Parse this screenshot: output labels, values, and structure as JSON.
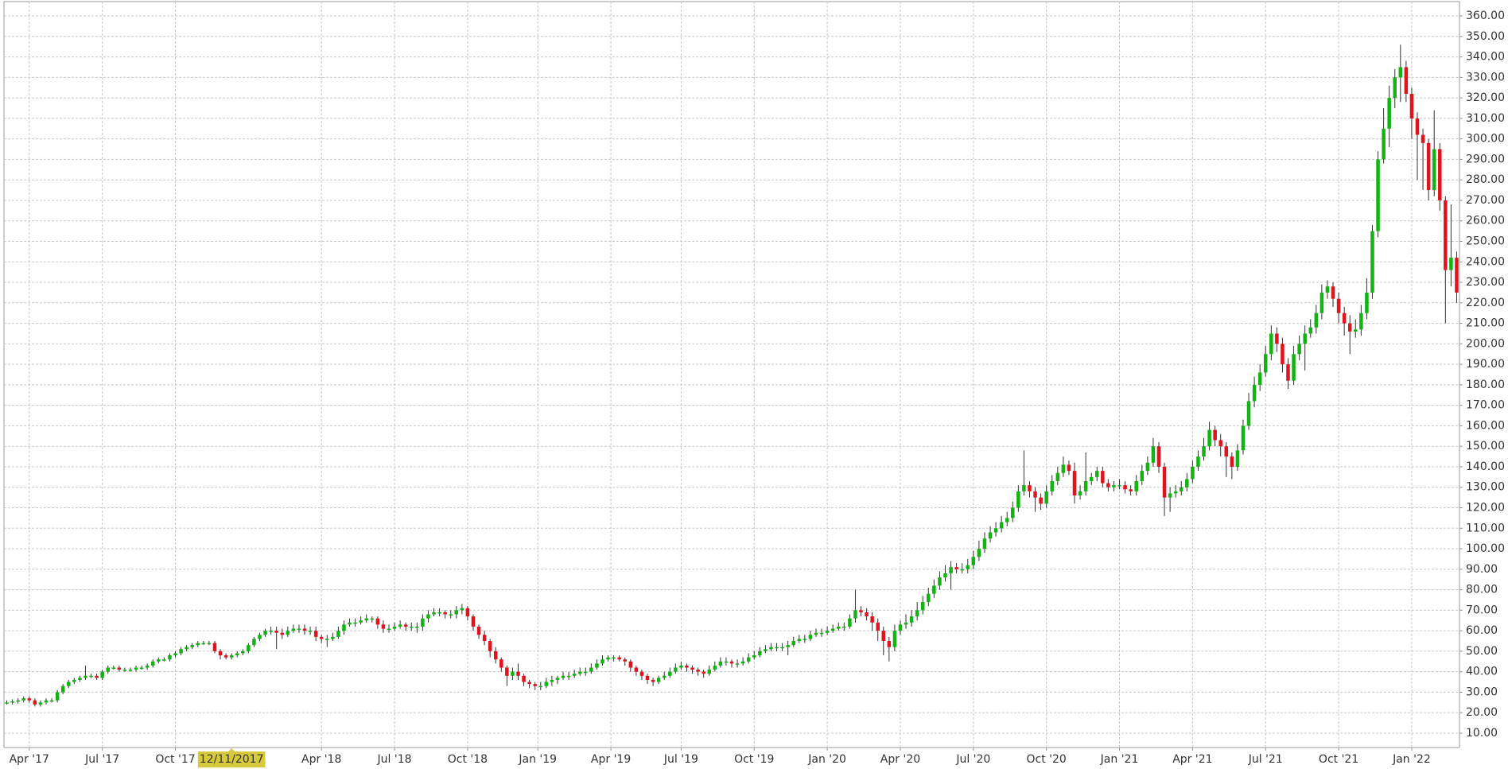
{
  "chart_data": {
    "type": "candlestick",
    "up_color": "#12b312",
    "down_color": "#e0141e",
    "grid": true,
    "crosshair_label": "12/11/2017",
    "xlim": [
      -0.5,
      258.5
    ],
    "xticks": [
      {
        "value": 4,
        "label": "Apr '17"
      },
      {
        "value": 17,
        "label": "Jul '17"
      },
      {
        "value": 30,
        "label": "Oct '17"
      },
      {
        "value": 56,
        "label": "Apr '18"
      },
      {
        "value": 69,
        "label": "Jul '18"
      },
      {
        "value": 82,
        "label": "Oct '18"
      },
      {
        "value": 94.5,
        "label": "Jan '19"
      },
      {
        "value": 107.5,
        "label": "Apr '19"
      },
      {
        "value": 120,
        "label": "Jul '19"
      },
      {
        "value": 133,
        "label": "Oct '19"
      },
      {
        "value": 146,
        "label": "Jan '20"
      },
      {
        "value": 159,
        "label": "Apr '20"
      },
      {
        "value": 172,
        "label": "Jul '20"
      },
      {
        "value": 185,
        "label": "Oct '20"
      },
      {
        "value": 198,
        "label": "Jan '21"
      },
      {
        "value": 211,
        "label": "Apr '21"
      },
      {
        "value": 224,
        "label": "Jul '21"
      },
      {
        "value": 237,
        "label": "Oct '21"
      },
      {
        "value": 250,
        "label": "Jan '22"
      }
    ],
    "ylim": [
      3,
      367
    ],
    "yticks": [
      {
        "value": 10,
        "label": "10.00"
      },
      {
        "value": 20,
        "label": "20.00"
      },
      {
        "value": 30,
        "label": "30.00"
      },
      {
        "value": 40,
        "label": "40.00"
      },
      {
        "value": 50,
        "label": "50.00"
      },
      {
        "value": 60,
        "label": "60.00"
      },
      {
        "value": 70,
        "label": "70.00"
      },
      {
        "value": 80,
        "label": "80.00"
      },
      {
        "value": 90,
        "label": "90.00"
      },
      {
        "value": 100,
        "label": "100.00"
      },
      {
        "value": 110,
        "label": "110.00"
      },
      {
        "value": 120,
        "label": "120.00"
      },
      {
        "value": 130,
        "label": "130.00"
      },
      {
        "value": 140,
        "label": "140.00"
      },
      {
        "value": 150,
        "label": "150.00"
      },
      {
        "value": 160,
        "label": "160.00"
      },
      {
        "value": 170,
        "label": "170.00"
      },
      {
        "value": 180,
        "label": "180.00"
      },
      {
        "value": 190,
        "label": "190.00"
      },
      {
        "value": 200,
        "label": "200.00"
      },
      {
        "value": 210,
        "label": "210.00"
      },
      {
        "value": 220,
        "label": "220.00"
      },
      {
        "value": 230,
        "label": "230.00"
      },
      {
        "value": 240,
        "label": "240.00"
      },
      {
        "value": 250,
        "label": "250.00"
      },
      {
        "value": 260,
        "label": "260.00"
      },
      {
        "value": 270,
        "label": "270.00"
      },
      {
        "value": 280,
        "label": "280.00"
      },
      {
        "value": 290,
        "label": "290.00"
      },
      {
        "value": 300,
        "label": "300.00"
      },
      {
        "value": 310,
        "label": "310.00"
      },
      {
        "value": 320,
        "label": "320.00"
      },
      {
        "value": 330,
        "label": "330.00"
      },
      {
        "value": 340,
        "label": "340.00"
      },
      {
        "value": 350,
        "label": "350.00"
      },
      {
        "value": 360,
        "label": "360.00"
      }
    ],
    "open": [
      24.5,
      25,
      25.5,
      26,
      27,
      26,
      24,
      25,
      26,
      26,
      30,
      33,
      35,
      36,
      37,
      38,
      38,
      37,
      40,
      42,
      42,
      41,
      41,
      41,
      42,
      42,
      43,
      45,
      46,
      46,
      48,
      49,
      51,
      52,
      53,
      54,
      54,
      54,
      50,
      48,
      47,
      48,
      49,
      50,
      53,
      56,
      58,
      60,
      60,
      59,
      58,
      60,
      61,
      61,
      60,
      60,
      57,
      56,
      56,
      57,
      60,
      63,
      64,
      64,
      65,
      66,
      66,
      63,
      61,
      61,
      62,
      63,
      62,
      62,
      62,
      66,
      68,
      69,
      69,
      68,
      68,
      70,
      71,
      67,
      62,
      58,
      55,
      50,
      46,
      42,
      38,
      40,
      38,
      35,
      34,
      33,
      33,
      35,
      36,
      37,
      38,
      38,
      39,
      40,
      40,
      42,
      44,
      46,
      47,
      47,
      46,
      45,
      42,
      40,
      38,
      36,
      35,
      37,
      38,
      40,
      42,
      43,
      42,
      41,
      40,
      39,
      41,
      43,
      45,
      45,
      44,
      44,
      45,
      47,
      48,
      50,
      51,
      52,
      52,
      52,
      53,
      55,
      56,
      56,
      58,
      59,
      59,
      60,
      61,
      62,
      62,
      66,
      70,
      69,
      67,
      64,
      60,
      55,
      52,
      60,
      63,
      64,
      67,
      70,
      74,
      78,
      82,
      86,
      88,
      91,
      90,
      90,
      92,
      96,
      100,
      105,
      108,
      110,
      113,
      115,
      120,
      128,
      131,
      128,
      125,
      122,
      128,
      133,
      137,
      141,
      138,
      126,
      128,
      133,
      135,
      138,
      132,
      130,
      131,
      131,
      129,
      128,
      133,
      138,
      142,
      150,
      140,
      125,
      127,
      128,
      130,
      134,
      140,
      145,
      150,
      158,
      153,
      150,
      145,
      140,
      148,
      160,
      172,
      180,
      186,
      195,
      205,
      200,
      190,
      182,
      195,
      200,
      205,
      208,
      215,
      225,
      228,
      222,
      215,
      210,
      206,
      207,
      215,
      225,
      255,
      290,
      305,
      320,
      330,
      335,
      322,
      310,
      302,
      298,
      275,
      295,
      270,
      236,
      242
    ],
    "high": [
      26,
      26.5,
      27,
      28,
      28,
      27,
      26,
      27,
      27,
      31,
      34,
      36,
      37,
      38,
      43,
      39,
      39,
      41,
      43,
      43,
      43,
      42,
      42,
      43,
      43,
      44,
      46,
      47,
      47,
      49,
      50,
      52,
      53,
      54,
      55,
      55,
      55,
      55,
      51,
      49,
      49,
      50,
      51,
      54,
      57,
      59,
      61,
      62,
      62,
      61,
      62,
      63,
      63,
      63,
      62,
      62,
      58,
      58,
      59,
      62,
      65,
      66,
      66,
      67,
      68,
      67,
      67,
      65,
      63,
      64,
      65,
      64,
      64,
      64,
      68,
      70,
      71,
      71,
      70,
      70,
      72,
      73,
      72,
      68,
      63,
      60,
      56,
      52,
      47,
      43,
      42,
      44,
      39,
      36,
      35,
      35,
      37,
      38,
      38,
      40,
      40,
      41,
      42,
      42,
      44,
      46,
      48,
      48,
      48,
      48,
      47,
      46,
      43,
      41,
      39,
      37,
      38,
      40,
      42,
      44,
      45,
      44,
      43,
      42,
      41,
      43,
      45,
      47,
      47,
      46,
      46,
      47,
      49,
      50,
      52,
      53,
      54,
      54,
      54,
      55,
      57,
      58,
      58,
      60,
      61,
      61,
      62,
      63,
      64,
      64,
      68,
      80,
      72,
      71,
      69,
      66,
      62,
      57,
      63,
      65,
      68,
      70,
      74,
      77,
      81,
      85,
      89,
      92,
      94,
      93,
      93,
      95,
      99,
      104,
      108,
      111,
      113,
      116,
      118,
      123,
      131,
      148,
      133,
      130,
      127,
      131,
      136,
      140,
      145,
      143,
      142,
      131,
      147,
      137,
      140,
      140,
      134,
      133,
      134,
      133,
      131,
      136,
      141,
      145,
      154,
      152,
      142,
      130,
      131,
      133,
      137,
      143,
      148,
      154,
      162,
      160,
      156,
      152,
      147,
      151,
      163,
      176,
      184,
      190,
      199,
      209,
      208,
      203,
      193,
      199,
      204,
      209,
      212,
      219,
      229,
      231,
      230,
      225,
      218,
      214,
      212,
      219,
      232,
      258,
      294,
      315,
      326,
      334,
      346,
      338,
      325,
      313,
      305,
      300,
      314,
      298,
      272,
      268,
      245
    ],
    "low": [
      24,
      24,
      24.5,
      25,
      25,
      23,
      23,
      24,
      25,
      25,
      29,
      32,
      34,
      35,
      36,
      37,
      36,
      36,
      39,
      41,
      40,
      40,
      40,
      40,
      41,
      41,
      42,
      44,
      45,
      45,
      47,
      48,
      50,
      51,
      52,
      53,
      53,
      49,
      46,
      46,
      46,
      47,
      48,
      49,
      52,
      55,
      57,
      58,
      51,
      56,
      57,
      59,
      59,
      58,
      58,
      55,
      54,
      52,
      55,
      56,
      58,
      62,
      62,
      63,
      64,
      64,
      61,
      59,
      59,
      60,
      61,
      60,
      60,
      59,
      60,
      64,
      67,
      67,
      66,
      66,
      66,
      68,
      65,
      60,
      56,
      53,
      47,
      44,
      40,
      33,
      36,
      36,
      33,
      32,
      31,
      31,
      32,
      33,
      34,
      36,
      36,
      37,
      38,
      38,
      39,
      41,
      43,
      45,
      45,
      45,
      43,
      40,
      38,
      36,
      34,
      33,
      34,
      36,
      37,
      39,
      41,
      40,
      39,
      38,
      37,
      38,
      40,
      42,
      43,
      42,
      42,
      43,
      44,
      46,
      47,
      49,
      50,
      50,
      50,
      48,
      52,
      54,
      54,
      55,
      57,
      57,
      58,
      59,
      60,
      60,
      61,
      64,
      67,
      65,
      60,
      55,
      48,
      45,
      50,
      58,
      61,
      62,
      65,
      68,
      72,
      76,
      80,
      84,
      80,
      88,
      88,
      88,
      90,
      94,
      98,
      103,
      106,
      108,
      111,
      113,
      118,
      126,
      125,
      118,
      119,
      120,
      126,
      131,
      135,
      136,
      122,
      124,
      126,
      131,
      133,
      130,
      128,
      128,
      129,
      127,
      126,
      126,
      131,
      136,
      140,
      137,
      116,
      118,
      125,
      126,
      128,
      132,
      138,
      143,
      148,
      150,
      145,
      135,
      134,
      138,
      146,
      158,
      169,
      177,
      184,
      192,
      196,
      186,
      178,
      180,
      192,
      187,
      203,
      205,
      212,
      222,
      218,
      210,
      204,
      195,
      203,
      204,
      212,
      222,
      252,
      288,
      296,
      315,
      318,
      318,
      300,
      280,
      275,
      270,
      272,
      265,
      210,
      228,
      220
    ],
    "close": [
      25,
      25.5,
      26,
      27,
      26,
      24,
      25,
      26,
      26,
      30,
      33,
      35,
      36,
      37,
      38,
      38,
      37,
      40,
      42,
      42,
      41,
      41,
      41,
      42,
      42,
      43,
      45,
      46,
      46,
      48,
      49,
      51,
      52,
      53,
      54,
      54,
      54,
      50,
      48,
      47,
      48,
      49,
      50,
      53,
      56,
      58,
      60,
      60,
      59,
      58,
      60,
      61,
      61,
      60,
      60,
      57,
      56,
      56,
      57,
      60,
      63,
      64,
      64,
      65,
      66,
      66,
      63,
      61,
      61,
      62,
      63,
      62,
      62,
      62,
      66,
      68,
      69,
      69,
      68,
      68,
      70,
      71,
      67,
      62,
      58,
      55,
      50,
      46,
      42,
      38,
      40,
      38,
      35,
      34,
      33,
      33,
      35,
      36,
      37,
      38,
      38,
      39,
      40,
      40,
      42,
      44,
      46,
      47,
      47,
      46,
      45,
      42,
      40,
      38,
      36,
      35,
      37,
      38,
      40,
      42,
      43,
      42,
      41,
      40,
      39,
      41,
      43,
      45,
      45,
      44,
      44,
      45,
      47,
      48,
      50,
      51,
      52,
      52,
      52,
      53,
      55,
      56,
      56,
      58,
      59,
      59,
      60,
      61,
      62,
      62,
      66,
      70,
      69,
      67,
      64,
      60,
      55,
      52,
      60,
      63,
      64,
      67,
      70,
      74,
      78,
      82,
      86,
      88,
      91,
      90,
      90,
      92,
      96,
      100,
      105,
      108,
      110,
      113,
      115,
      120,
      128,
      131,
      128,
      125,
      122,
      128,
      133,
      137,
      141,
      138,
      126,
      128,
      133,
      135,
      138,
      132,
      130,
      131,
      131,
      129,
      128,
      133,
      138,
      142,
      150,
      140,
      125,
      127,
      128,
      130,
      134,
      140,
      145,
      150,
      158,
      153,
      150,
      145,
      140,
      148,
      160,
      172,
      180,
      186,
      195,
      205,
      200,
      190,
      182,
      195,
      200,
      205,
      208,
      215,
      225,
      228,
      222,
      215,
      210,
      206,
      207,
      215,
      225,
      255,
      290,
      305,
      320,
      330,
      335,
      322,
      310,
      302,
      298,
      275,
      295,
      270,
      236,
      242,
      225
    ]
  }
}
